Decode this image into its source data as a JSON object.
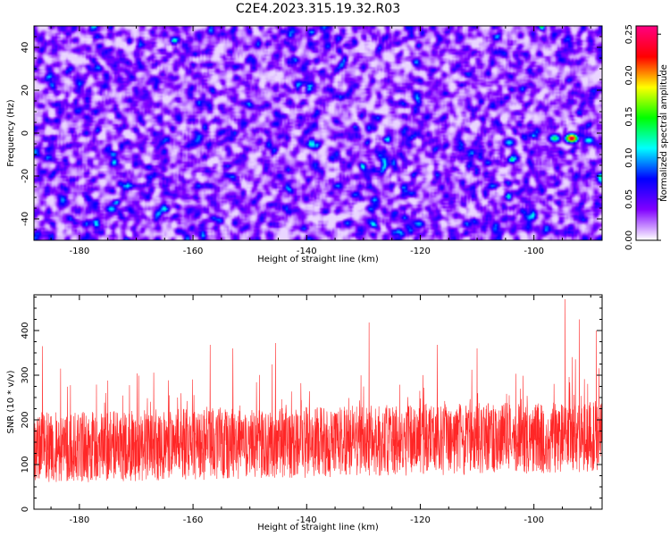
{
  "figure": {
    "title": "C2E4.2023.315.19.32.R03"
  },
  "chart_data": [
    {
      "type": "heatmap",
      "xlabel": "Height of straight line (km)",
      "ylabel": "Frequency (Hz)",
      "xlim": [
        -188,
        -88
      ],
      "ylim": [
        -50,
        50
      ],
      "xticks": [
        -180,
        -160,
        -140,
        -120,
        -100
      ],
      "yticks": [
        -40,
        -20,
        0,
        20,
        40
      ],
      "colorbar": {
        "label": "Normalized spectral amplitude",
        "range": [
          0,
          0.26
        ],
        "ticks": [
          "0.00",
          "0.05",
          "0.10",
          "0.15",
          "0.20",
          "0.25"
        ],
        "colormap": [
          "#ffffff",
          "#8000ff",
          "#0000ff",
          "#00ffff",
          "#00ff00",
          "#ffff00",
          "#ff0000",
          "#ff0080"
        ]
      },
      "background_level": 0.03,
      "features": [
        {
          "x": -93.5,
          "y": -2,
          "amplitude": 0.25
        },
        {
          "x": -96.5,
          "y": -2,
          "amplitude": 0.14
        },
        {
          "x": -90.5,
          "y": -3,
          "amplitude": 0.12
        },
        {
          "x": -104.5,
          "y": -4,
          "amplitude": 0.11
        },
        {
          "x": -174.5,
          "y": -35,
          "amplitude": 0.11
        }
      ]
    },
    {
      "type": "line",
      "xlabel": "Height of straight line (km)",
      "ylabel": "SNR (10 * v/v)",
      "xlim": [
        -188,
        -88
      ],
      "ylim": [
        0,
        480
      ],
      "xticks": [
        -180,
        -160,
        -140,
        -120,
        -100
      ],
      "yticks": [
        0,
        100,
        200,
        300,
        400
      ],
      "series": [
        {
          "color": "#ff0000",
          "typical_min": 50,
          "typical_max": 250,
          "mean": 130,
          "peaks": [
            {
              "x": -186.5,
              "y": 365
            },
            {
              "x": -157.0,
              "y": 368
            },
            {
              "x": -153.0,
              "y": 360
            },
            {
              "x": -145.5,
              "y": 372
            },
            {
              "x": -129.0,
              "y": 418
            },
            {
              "x": -117.0,
              "y": 368
            },
            {
              "x": -110.0,
              "y": 360
            },
            {
              "x": -94.5,
              "y": 470
            },
            {
              "x": -92.0,
              "y": 425
            },
            {
              "x": -89.0,
              "y": 400
            }
          ]
        }
      ]
    }
  ]
}
